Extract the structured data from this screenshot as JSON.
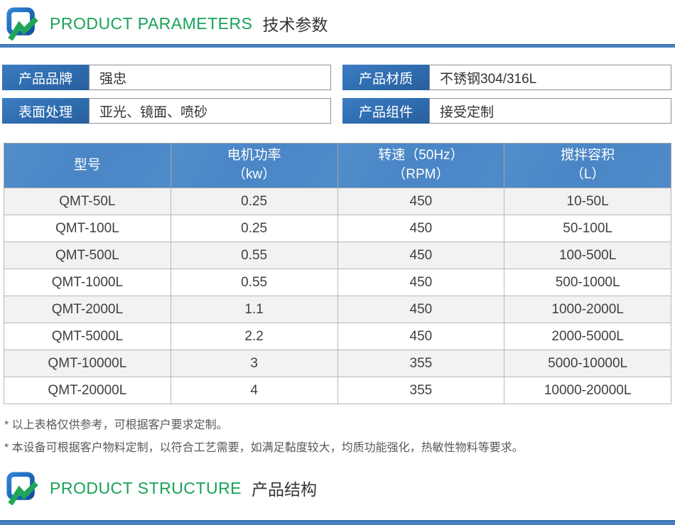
{
  "colors": {
    "accent_blue": "#4880bd",
    "label_blue": "#2e6cae",
    "table_header_blue": "#4a86c6",
    "title_green": "#17a257",
    "row_alt_gray": "#f2f2f2"
  },
  "sections": {
    "parameters": {
      "title_en": "PRODUCT PARAMETERS",
      "title_zh": "技术参数"
    },
    "structure": {
      "title_en": "PRODUCT STRUCTURE",
      "title_zh": "产品结构"
    }
  },
  "fields": [
    {
      "label": "产品品牌",
      "value": "强忠"
    },
    {
      "label": "产品材质",
      "value": "不锈钢304/316L"
    },
    {
      "label": "表面处理",
      "value": "亚光、镜面、喷砂"
    },
    {
      "label": "产品组件",
      "value": "接受定制"
    }
  ],
  "table": {
    "columns": [
      "型号",
      "电机功率\n（kw）",
      "转速（50Hz）\n（RPM）",
      "搅拌容积\n（L）"
    ],
    "rows": [
      [
        "QMT-50L",
        "0.25",
        "450",
        "10-50L"
      ],
      [
        "QMT-100L",
        "0.25",
        "450",
        "50-100L"
      ],
      [
        "QMT-500L",
        "0.55",
        "450",
        "100-500L"
      ],
      [
        "QMT-1000L",
        "0.55",
        "450",
        "500-1000L"
      ],
      [
        "QMT-2000L",
        "1.1",
        "450",
        "1000-2000L"
      ],
      [
        "QMT-5000L",
        "2.2",
        "450",
        "2000-5000L"
      ],
      [
        "QMT-10000L",
        "3",
        "355",
        "5000-10000L"
      ],
      [
        "QMT-20000L",
        "4",
        "355",
        "10000-20000L"
      ]
    ]
  },
  "notes": [
    "* 以上表格仅供参考，可根据客户要求定制。",
    "* 本设备可根据客户物料定制，以符合工艺需要，如满足黏度较大，均质功能强化，热敏性物料等要求。"
  ],
  "icons": {
    "logo": "blue-square-green-zigzag-logo"
  }
}
